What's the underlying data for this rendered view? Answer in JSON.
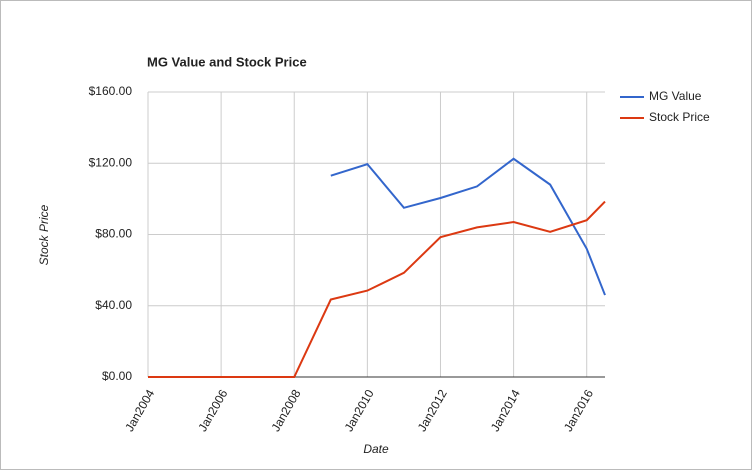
{
  "chart_data": {
    "type": "line",
    "title": "MG Value and Stock Price",
    "x_label": "Date",
    "y_label": "Stock Price",
    "x": [
      2004,
      2005,
      2006,
      2007,
      2008,
      2009,
      2010,
      2011,
      2012,
      2013,
      2014,
      2015,
      2016,
      2016.5
    ],
    "series": [
      {
        "name": "MG Value",
        "color": "#3366cc",
        "values": [
          null,
          null,
          null,
          null,
          null,
          113,
          119.5,
          95,
          100.5,
          107,
          122.5,
          108,
          72,
          46
        ]
      },
      {
        "name": "Stock Price",
        "color": "#dc3912",
        "values": [
          0,
          0,
          0,
          0,
          0,
          43.5,
          48.5,
          58.5,
          78.5,
          84,
          87,
          81.5,
          88,
          98.5
        ]
      }
    ],
    "xlim": [
      2004,
      2016.5
    ],
    "xticks": [
      {
        "value": 2004,
        "label": "Jan2004"
      },
      {
        "value": 2006,
        "label": "Jan2006"
      },
      {
        "value": 2008,
        "label": "Jan2008"
      },
      {
        "value": 2010,
        "label": "Jan2010"
      },
      {
        "value": 2012,
        "label": "Jan2012"
      },
      {
        "value": 2014,
        "label": "Jan2014"
      },
      {
        "value": 2016,
        "label": "Jan2016"
      }
    ],
    "ylim": [
      0,
      160
    ],
    "yticks": [
      {
        "value": 0,
        "label": "$0.00"
      },
      {
        "value": 40,
        "label": "$40.00"
      },
      {
        "value": 80,
        "label": "$80.00"
      },
      {
        "value": 120,
        "label": "$120.00"
      },
      {
        "value": 160,
        "label": "$160.00"
      }
    ],
    "grid": true,
    "legend": "right"
  }
}
